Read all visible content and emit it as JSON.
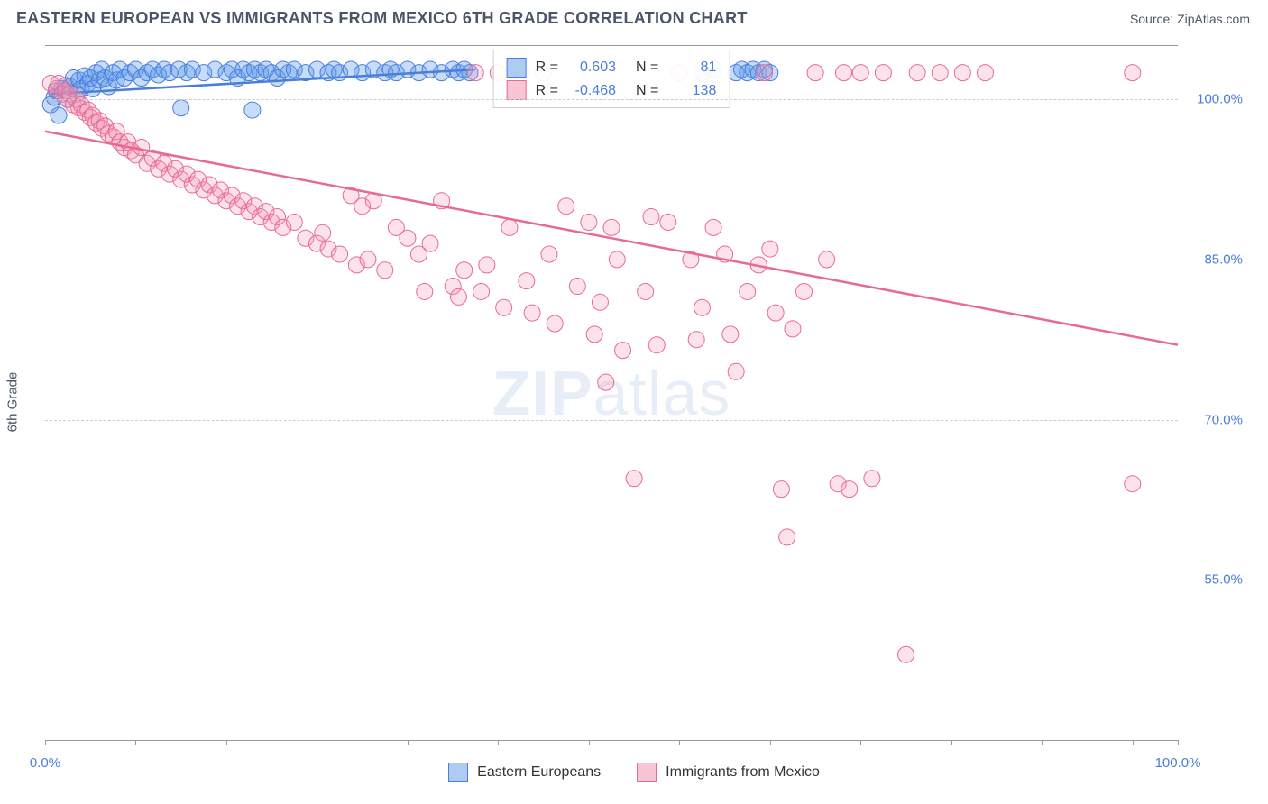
{
  "header": {
    "title": "EASTERN EUROPEAN VS IMMIGRANTS FROM MEXICO 6TH GRADE CORRELATION CHART",
    "source": "Source: ZipAtlas.com"
  },
  "axes": {
    "y_label": "6th Grade",
    "x_min": 0,
    "x_max": 100,
    "y_min": 40,
    "y_max": 105,
    "x_ticks": [
      0,
      8,
      16,
      24,
      32,
      40,
      48,
      56,
      64,
      72,
      80,
      88,
      96,
      100
    ],
    "x_tick_labels": {
      "0": "0.0%",
      "100": "100.0%"
    },
    "y_gridlines": [
      55,
      70,
      85,
      100
    ],
    "y_tick_labels": {
      "55": "55.0%",
      "70": "70.0%",
      "85": "85.0%",
      "100": "100.0%"
    }
  },
  "series": [
    {
      "name": "Eastern Europeans",
      "color_fill": "rgba(95,155,235,0.35)",
      "color_stroke": "#4a7edb",
      "swatch_fill": "#aecbf2",
      "swatch_border": "#4a7edb",
      "r_value": "0.603",
      "n_value": "81",
      "marker_radius": 9,
      "trend": {
        "x1": 0.5,
        "y1": 100.5,
        "x2": 38,
        "y2": 102.8
      },
      "points": [
        [
          0.5,
          99.5
        ],
        [
          0.8,
          100.2
        ],
        [
          1,
          100.8
        ],
        [
          1.2,
          98.5
        ],
        [
          1.5,
          101
        ],
        [
          1.8,
          101.3
        ],
        [
          2,
          100
        ],
        [
          2.2,
          101.2
        ],
        [
          2.5,
          102
        ],
        [
          2.8,
          100.5
        ],
        [
          3,
          101.8
        ],
        [
          3.2,
          101
        ],
        [
          3.5,
          102.2
        ],
        [
          3.8,
          101.5
        ],
        [
          4,
          102
        ],
        [
          4.2,
          101
        ],
        [
          4.5,
          102.5
        ],
        [
          4.8,
          101.8
        ],
        [
          5,
          102.8
        ],
        [
          5.3,
          102
        ],
        [
          5.6,
          101.2
        ],
        [
          6,
          102.5
        ],
        [
          6.3,
          101.8
        ],
        [
          6.6,
          102.8
        ],
        [
          7,
          102
        ],
        [
          7.5,
          102.5
        ],
        [
          8,
          102.8
        ],
        [
          8.5,
          102
        ],
        [
          9,
          102.5
        ],
        [
          9.5,
          102.8
        ],
        [
          10,
          102.3
        ],
        [
          10.5,
          102.8
        ],
        [
          11,
          102.5
        ],
        [
          11.8,
          102.8
        ],
        [
          12,
          99.2
        ],
        [
          12.5,
          102.5
        ],
        [
          13,
          102.8
        ],
        [
          14,
          102.5
        ],
        [
          15,
          102.8
        ],
        [
          16,
          102.5
        ],
        [
          16.5,
          102.8
        ],
        [
          17,
          102
        ],
        [
          17.5,
          102.8
        ],
        [
          18,
          102.5
        ],
        [
          18.3,
          99
        ],
        [
          18.5,
          102.8
        ],
        [
          19,
          102.5
        ],
        [
          19.5,
          102.8
        ],
        [
          20,
          102.5
        ],
        [
          20.5,
          102
        ],
        [
          21,
          102.8
        ],
        [
          21.5,
          102.5
        ],
        [
          22,
          102.8
        ],
        [
          23,
          102.5
        ],
        [
          24,
          102.8
        ],
        [
          25,
          102.5
        ],
        [
          25.5,
          102.8
        ],
        [
          26,
          102.5
        ],
        [
          27,
          102.8
        ],
        [
          28,
          102.5
        ],
        [
          29,
          102.8
        ],
        [
          30,
          102.5
        ],
        [
          30.5,
          102.8
        ],
        [
          31,
          102.5
        ],
        [
          32,
          102.8
        ],
        [
          33,
          102.5
        ],
        [
          34,
          102.8
        ],
        [
          35,
          102.5
        ],
        [
          36,
          102.8
        ],
        [
          36.5,
          102.5
        ],
        [
          37,
          102.8
        ],
        [
          37.5,
          102.5
        ],
        [
          58,
          102.5
        ],
        [
          59,
          102.8
        ],
        [
          61,
          102.5
        ],
        [
          61.5,
          102.8
        ],
        [
          62,
          102.5
        ],
        [
          62.5,
          102.8
        ],
        [
          63,
          102.5
        ],
        [
          63.5,
          102.8
        ],
        [
          64,
          102.5
        ]
      ]
    },
    {
      "name": "Immigrants from Mexico",
      "color_fill": "rgba(245,150,180,0.28)",
      "color_stroke": "#e86a93",
      "swatch_fill": "#f8c5d5",
      "swatch_border": "#e86a93",
      "r_value": "-0.468",
      "n_value": "138",
      "marker_radius": 9,
      "trend": {
        "x1": 0,
        "y1": 97,
        "x2": 100,
        "y2": 77
      },
      "points": [
        [
          0.5,
          101.5
        ],
        [
          1,
          101
        ],
        [
          1.2,
          101.5
        ],
        [
          1.5,
          100.5
        ],
        [
          1.8,
          100.8
        ],
        [
          2,
          100
        ],
        [
          2.2,
          100.5
        ],
        [
          2.5,
          99.5
        ],
        [
          2.8,
          100
        ],
        [
          3,
          99.2
        ],
        [
          3.2,
          99.5
        ],
        [
          3.5,
          98.8
        ],
        [
          3.8,
          99
        ],
        [
          4,
          98.3
        ],
        [
          4.2,
          98.5
        ],
        [
          4.5,
          97.8
        ],
        [
          4.8,
          98
        ],
        [
          5,
          97.3
        ],
        [
          5.3,
          97.5
        ],
        [
          5.6,
          96.8
        ],
        [
          6,
          96.5
        ],
        [
          6.3,
          97
        ],
        [
          6.6,
          96
        ],
        [
          7,
          95.5
        ],
        [
          7.3,
          96
        ],
        [
          7.6,
          95.2
        ],
        [
          8,
          94.8
        ],
        [
          8.5,
          95.5
        ],
        [
          9,
          94
        ],
        [
          9.5,
          94.5
        ],
        [
          10,
          93.5
        ],
        [
          10.5,
          94
        ],
        [
          11,
          93
        ],
        [
          11.5,
          93.5
        ],
        [
          12,
          92.5
        ],
        [
          12.5,
          93
        ],
        [
          13,
          92
        ],
        [
          13.5,
          92.5
        ],
        [
          14,
          91.5
        ],
        [
          14.5,
          92
        ],
        [
          15,
          91
        ],
        [
          15.5,
          91.5
        ],
        [
          16,
          90.5
        ],
        [
          16.5,
          91
        ],
        [
          17,
          90
        ],
        [
          17.5,
          90.5
        ],
        [
          18,
          89.5
        ],
        [
          18.5,
          90
        ],
        [
          19,
          89
        ],
        [
          19.5,
          89.5
        ],
        [
          20,
          88.5
        ],
        [
          20.5,
          89
        ],
        [
          21,
          88
        ],
        [
          22,
          88.5
        ],
        [
          23,
          87
        ],
        [
          24,
          86.5
        ],
        [
          24.5,
          87.5
        ],
        [
          25,
          86
        ],
        [
          26,
          85.5
        ],
        [
          27,
          91
        ],
        [
          27.5,
          84.5
        ],
        [
          28,
          90
        ],
        [
          28.5,
          85
        ],
        [
          29,
          90.5
        ],
        [
          30,
          84
        ],
        [
          31,
          88
        ],
        [
          32,
          87
        ],
        [
          33,
          85.5
        ],
        [
          33.5,
          82
        ],
        [
          34,
          86.5
        ],
        [
          35,
          90.5
        ],
        [
          36,
          82.5
        ],
        [
          36.5,
          81.5
        ],
        [
          37,
          84
        ],
        [
          38,
          102.5
        ],
        [
          38.5,
          82
        ],
        [
          39,
          84.5
        ],
        [
          40,
          102.5
        ],
        [
          40.5,
          80.5
        ],
        [
          41,
          88
        ],
        [
          42,
          102.5
        ],
        [
          42.5,
          83
        ],
        [
          43,
          80
        ],
        [
          44,
          102.5
        ],
        [
          44.5,
          85.5
        ],
        [
          45,
          79
        ],
        [
          46,
          90
        ],
        [
          47,
          82.5
        ],
        [
          48,
          88.5
        ],
        [
          48.5,
          78
        ],
        [
          49,
          81
        ],
        [
          49.5,
          73.5
        ],
        [
          50,
          88
        ],
        [
          50.5,
          85
        ],
        [
          51,
          76.5
        ],
        [
          52,
          64.5
        ],
        [
          53,
          82
        ],
        [
          53.5,
          89
        ],
        [
          54,
          77
        ],
        [
          55,
          88.5
        ],
        [
          56,
          102.5
        ],
        [
          57,
          85
        ],
        [
          57.5,
          77.5
        ],
        [
          58,
          80.5
        ],
        [
          59,
          88
        ],
        [
          60,
          85.5
        ],
        [
          60.5,
          78
        ],
        [
          61,
          74.5
        ],
        [
          62,
          82
        ],
        [
          63,
          84.5
        ],
        [
          63.5,
          102.5
        ],
        [
          64,
          86
        ],
        [
          64.5,
          80
        ],
        [
          65,
          63.5
        ],
        [
          65.5,
          59
        ],
        [
          66,
          78.5
        ],
        [
          67,
          82
        ],
        [
          68,
          102.5
        ],
        [
          69,
          85
        ],
        [
          70,
          64
        ],
        [
          70.5,
          102.5
        ],
        [
          71,
          63.5
        ],
        [
          72,
          102.5
        ],
        [
          73,
          64.5
        ],
        [
          74,
          102.5
        ],
        [
          76,
          48
        ],
        [
          77,
          102.5
        ],
        [
          79,
          102.5
        ],
        [
          81,
          102.5
        ],
        [
          83,
          102.5
        ],
        [
          96,
          102.5
        ],
        [
          96,
          64
        ]
      ]
    }
  ],
  "legend_bottom": [
    {
      "label": "Eastern Europeans",
      "swatch_fill": "#aecbf2",
      "swatch_border": "#4a7edb"
    },
    {
      "label": "Immigrants from Mexico",
      "swatch_fill": "#f8c5d5",
      "swatch_border": "#e86a93"
    }
  ],
  "watermark": {
    "part1": "ZIP",
    "part2": "atlas"
  }
}
